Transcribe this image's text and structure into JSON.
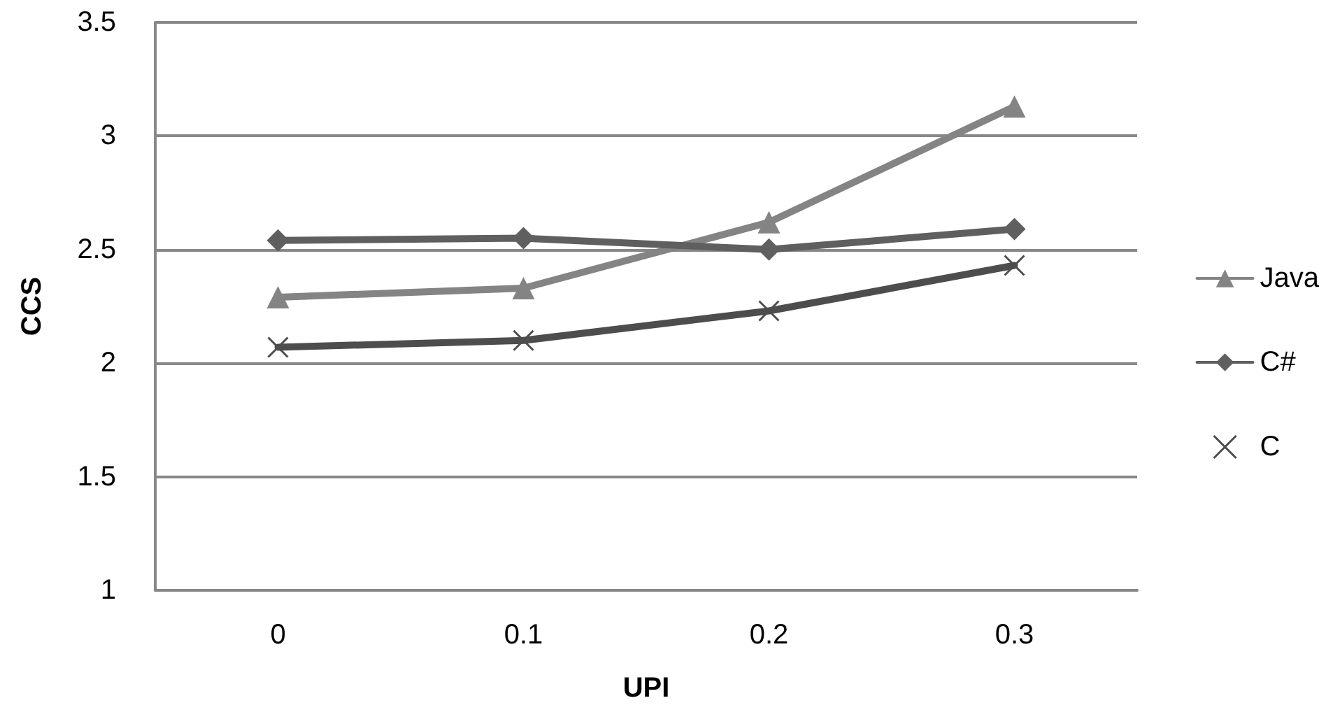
{
  "chart_data": {
    "type": "line",
    "xlabel": "UPI",
    "ylabel": "CCS",
    "categories": [
      "0",
      "0.1",
      "0.2",
      "0.3"
    ],
    "series": [
      {
        "name": "Java",
        "color": "#848484",
        "marker": "triangle",
        "values": [
          2.29,
          2.33,
          2.62,
          3.13
        ]
      },
      {
        "name": "C#",
        "color": "#5f5f5f",
        "marker": "diamond",
        "values": [
          2.54,
          2.55,
          2.5,
          2.59
        ]
      },
      {
        "name": "C",
        "color": "#4d4d4d",
        "marker": "cross",
        "values": [
          2.07,
          2.1,
          2.23,
          2.43
        ]
      }
    ],
    "ylim": [
      1,
      3.5
    ],
    "yticks": [
      1,
      1.5,
      2,
      2.5,
      3,
      3.5
    ],
    "grid": "y",
    "legend": "right"
  }
}
